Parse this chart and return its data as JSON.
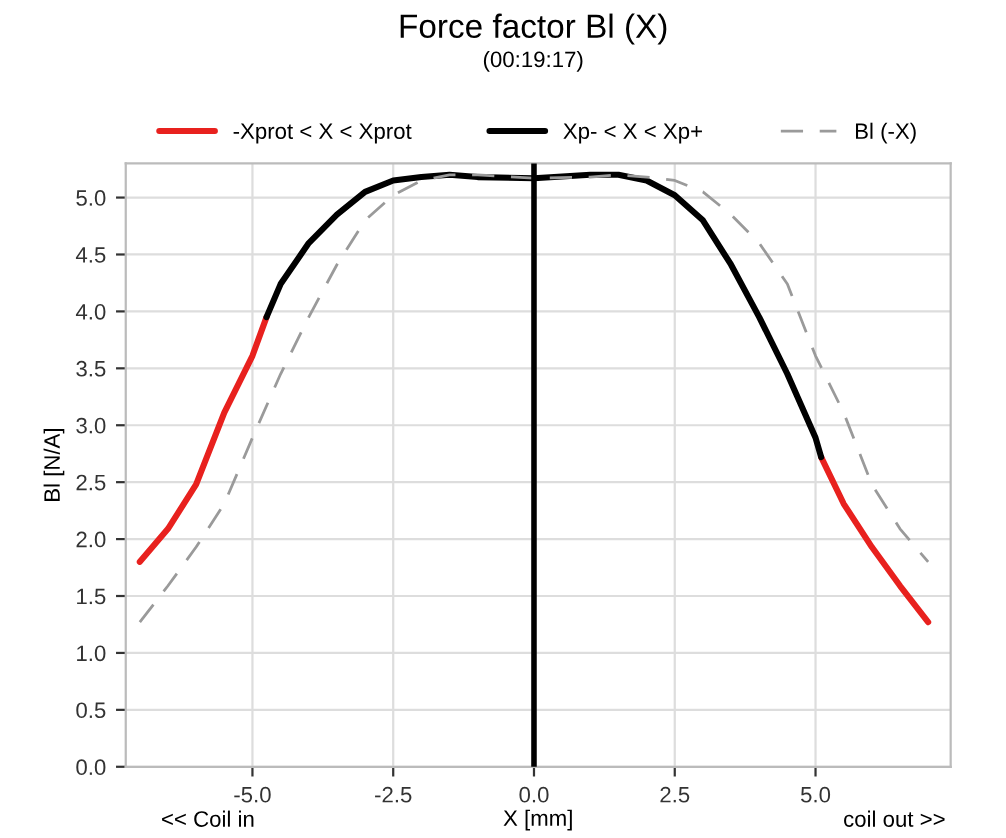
{
  "chart_data": {
    "type": "line",
    "title": "Force factor Bl (X)",
    "subtitle": "(00:19:17)",
    "xlabel": "X [mm]",
    "ylabel": "Bl [N/A]",
    "annotations": [
      "<< Coil in",
      "coil out >>"
    ],
    "series": [
      {
        "name": "-Xprot < X < Xprot",
        "color": "#e8211e",
        "x": [
          -7,
          -6.5,
          -6,
          -5.5,
          -5,
          -4.75,
          0,
          4.75,
          5.1,
          5.5,
          6,
          6.5,
          7
        ],
        "values": [
          1.8,
          2.09,
          2.48,
          3.11,
          3.61,
          3.95,
          null,
          null,
          2.72,
          2.31,
          1.93,
          1.59,
          1.27
        ]
      },
      {
        "name": "Xp- < X < Xp+",
        "color": "#000000",
        "x": [
          -4.75,
          -4.5,
          -4,
          -3.5,
          -3,
          -2.5,
          -2,
          -1.5,
          -1,
          0,
          1,
          1.5,
          2,
          2.5,
          3,
          3.5,
          4,
          4.5,
          5,
          5.1
        ],
        "values": [
          3.95,
          4.24,
          4.6,
          4.85,
          5.05,
          5.15,
          5.18,
          5.2,
          5.18,
          5.17,
          5.2,
          5.2,
          5.15,
          5.02,
          4.8,
          4.41,
          3.95,
          3.45,
          2.89,
          2.72
        ]
      },
      {
        "name": "Bl (-X)",
        "color": "#9a9a9a",
        "line_style": "dashed",
        "x": [
          -7,
          -6.5,
          -6,
          -5.5,
          -5,
          -4.5,
          -4,
          -3.5,
          -3,
          -2.5,
          -2,
          -1.5,
          -1,
          0,
          1,
          1.5,
          2,
          2.5,
          3,
          3.5,
          4,
          4.5,
          5,
          5.5,
          6,
          6.5,
          7
        ],
        "values": [
          1.27,
          1.59,
          1.93,
          2.31,
          2.89,
          3.45,
          3.95,
          4.41,
          4.8,
          5.02,
          5.15,
          5.2,
          5.2,
          5.17,
          5.18,
          5.2,
          5.18,
          5.15,
          5.05,
          4.85,
          4.6,
          4.24,
          3.61,
          3.11,
          2.48,
          2.09,
          1.8
        ]
      }
    ],
    "ref_lines": [
      {
        "axis": "x",
        "value": 0,
        "color": "#000000"
      }
    ],
    "xlim": [
      -7.25,
      7.4
    ],
    "ylim": [
      0,
      5.3
    ],
    "xticks": [
      {
        "value": -5,
        "label": "-5.0"
      },
      {
        "value": -2.5,
        "label": "-2.5"
      },
      {
        "value": 0,
        "label": "0.0"
      },
      {
        "value": 2.5,
        "label": "2.5"
      },
      {
        "value": 5,
        "label": "5.0"
      }
    ],
    "yticks": [
      {
        "value": 0,
        "label": "0.0"
      },
      {
        "value": 0.5,
        "label": "0.5"
      },
      {
        "value": 1,
        "label": "1.0"
      },
      {
        "value": 1.5,
        "label": "1.5"
      },
      {
        "value": 2,
        "label": "2.0"
      },
      {
        "value": 2.5,
        "label": "2.5"
      },
      {
        "value": 3,
        "label": "3.0"
      },
      {
        "value": 3.5,
        "label": "3.5"
      },
      {
        "value": 4,
        "label": "4.0"
      },
      {
        "value": 4.5,
        "label": "4.5"
      },
      {
        "value": 5,
        "label": "5.0"
      }
    ],
    "grid": true,
    "legend": "top",
    "marker": "none"
  }
}
